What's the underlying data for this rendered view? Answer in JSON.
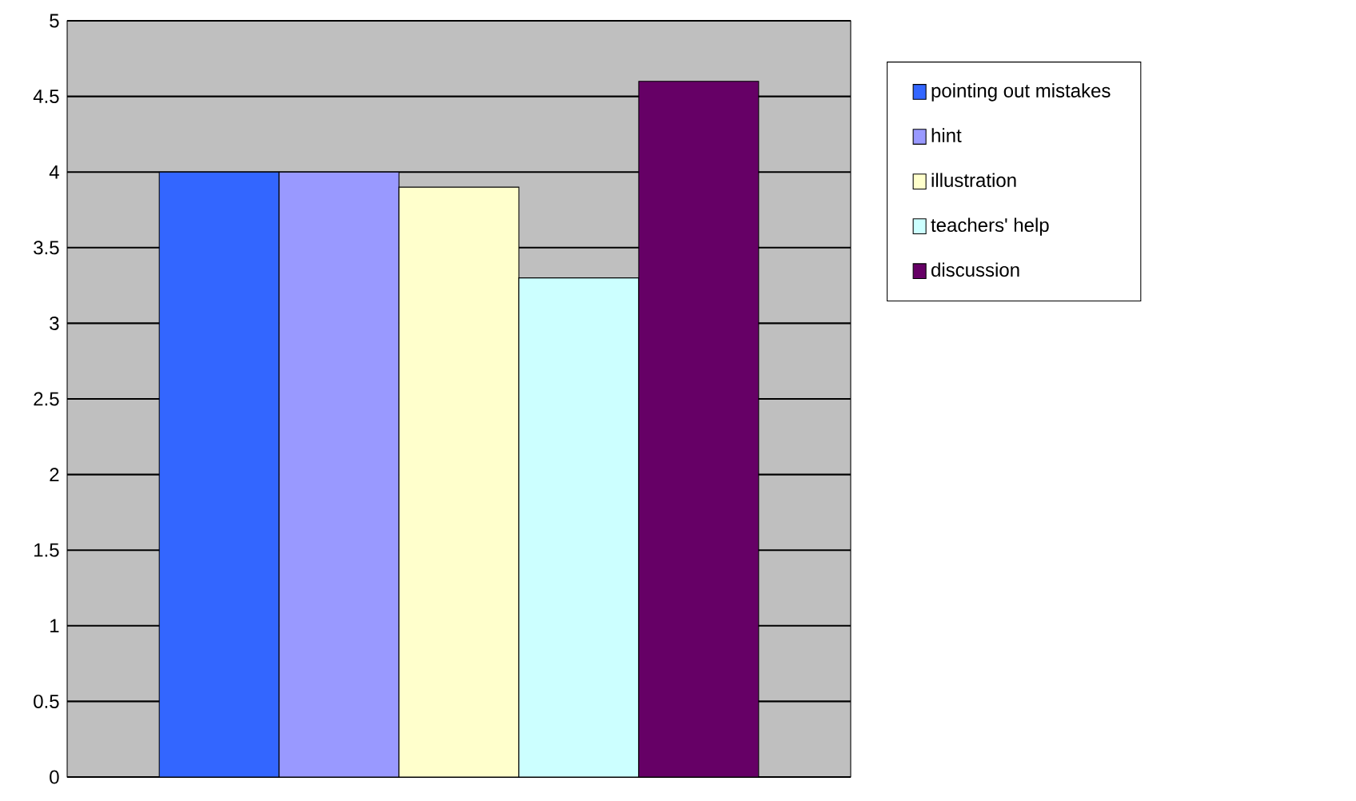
{
  "chart_data": {
    "type": "bar",
    "categories": [
      null
    ],
    "series": [
      {
        "name": "pointing out mistakes",
        "color": "#3366ff",
        "values": [
          4.0
        ]
      },
      {
        "name": "hint",
        "color": "#9999ff",
        "values": [
          4.0
        ]
      },
      {
        "name": "illustration",
        "color": "#ffffcc",
        "values": [
          3.9
        ]
      },
      {
        "name": "teachers' help",
        "color": "#ccffff",
        "values": [
          3.3
        ]
      },
      {
        "name": "discussion",
        "color": "#660066",
        "values": [
          4.6
        ]
      }
    ],
    "ylim": [
      0,
      5
    ],
    "yticks": [
      0,
      0.5,
      1,
      1.5,
      2,
      2.5,
      3,
      3.5,
      4,
      4.5,
      5
    ],
    "grid": "y",
    "legend": "right"
  }
}
